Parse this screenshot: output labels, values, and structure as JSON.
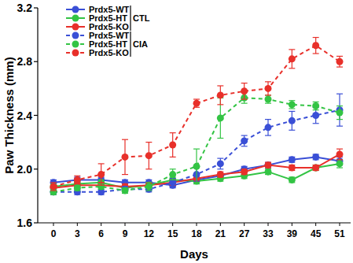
{
  "chart_data": {
    "type": "line",
    "x_label": "Days",
    "y_label": "Paw Thickness (mm)",
    "categories": [
      "0",
      "3",
      "6",
      "9",
      "12",
      "15",
      "18",
      "21",
      "27",
      "33",
      "39",
      "45",
      "51"
    ],
    "ylim": [
      1.6,
      3.2
    ],
    "yticks": [
      1.6,
      {
        "value": 2,
        "label": "2.0"
      },
      2.4,
      2.8,
      3.2
    ],
    "grid": false,
    "legend": "top-left",
    "series": [
      {
        "name": "Prdx5-WT",
        "group": "CTL",
        "color": "#3a4fd6",
        "marker": "circle",
        "line_style": "solid",
        "values": [
          1.9,
          1.92,
          1.92,
          1.9,
          1.9,
          1.88,
          1.92,
          1.95,
          2.0,
          2.03,
          2.07,
          2.09,
          2.06
        ],
        "errors": [
          0.02,
          0.02,
          0.02,
          0.02,
          0.02,
          0.02,
          0.02,
          0.02,
          0.02,
          0.02,
          0.02,
          0.02,
          0.03
        ]
      },
      {
        "name": "Prdx5-HT",
        "group": "CTL",
        "color": "#33c444",
        "marker": "circle",
        "line_style": "solid",
        "values": [
          1.87,
          1.89,
          1.9,
          1.86,
          1.88,
          1.92,
          1.91,
          1.93,
          1.95,
          1.98,
          1.92,
          2.01,
          2.04
        ],
        "errors": [
          0.02,
          0.02,
          0.02,
          0.02,
          0.02,
          0.02,
          0.02,
          0.02,
          0.02,
          0.02,
          0.02,
          0.02,
          0.03
        ]
      },
      {
        "name": "Prdx5-KO",
        "group": "CTL",
        "color": "#e8302a",
        "marker": "circle",
        "line_style": "solid",
        "values": [
          1.86,
          1.88,
          1.88,
          1.87,
          1.88,
          1.9,
          1.93,
          1.96,
          1.98,
          2.03,
          2.01,
          2.01,
          2.11
        ],
        "errors": [
          0.02,
          0.02,
          0.02,
          0.02,
          0.02,
          0.02,
          0.02,
          0.02,
          0.02,
          0.02,
          0.02,
          0.02,
          0.04
        ]
      },
      {
        "name": "Prdx5-WT",
        "group": "CIA",
        "color": "#3a4fd6",
        "marker": "circle",
        "line_style": "dashed",
        "values": [
          1.83,
          1.83,
          1.83,
          1.85,
          1.85,
          1.9,
          1.96,
          2.04,
          2.21,
          2.31,
          2.36,
          2.4,
          2.44
        ],
        "errors": [
          0.02,
          0.02,
          0.02,
          0.02,
          0.02,
          0.03,
          0.05,
          0.04,
          0.04,
          0.06,
          0.07,
          0.06,
          0.12
        ]
      },
      {
        "name": "Prdx5-HT",
        "group": "CIA",
        "color": "#33c444",
        "marker": "circle",
        "line_style": "dashed",
        "values": [
          1.83,
          1.86,
          1.87,
          1.84,
          1.87,
          1.96,
          2.02,
          2.38,
          2.53,
          2.52,
          2.48,
          2.47,
          2.42
        ],
        "errors": [
          0.02,
          0.02,
          0.02,
          0.02,
          0.03,
          0.04,
          0.13,
          0.15,
          0.04,
          0.03,
          0.03,
          0.03,
          0.05
        ]
      },
      {
        "name": "Prdx5-KO",
        "group": "CIA",
        "color": "#e8302a",
        "marker": "circle",
        "line_style": "dashed",
        "values": [
          1.87,
          1.92,
          1.96,
          2.09,
          2.1,
          2.18,
          2.49,
          2.55,
          2.58,
          2.6,
          2.82,
          2.92,
          2.8
        ],
        "errors": [
          0.03,
          0.03,
          0.08,
          0.13,
          0.1,
          0.09,
          0.03,
          0.07,
          0.06,
          0.05,
          0.07,
          0.06,
          0.04
        ]
      }
    ]
  }
}
